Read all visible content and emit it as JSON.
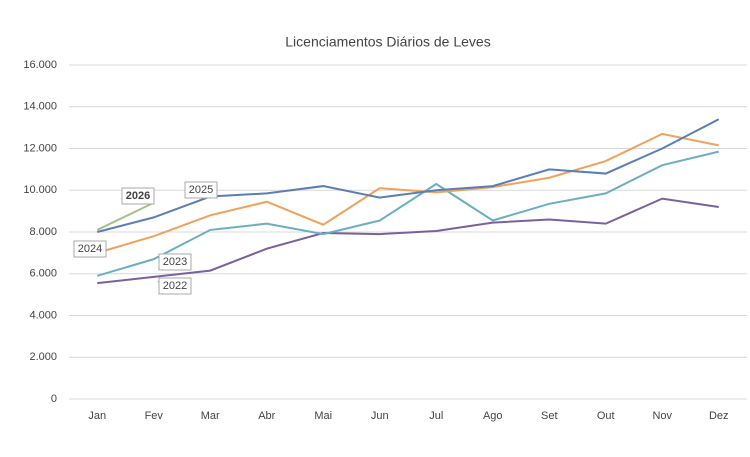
{
  "chart_data": {
    "type": "line",
    "title": "Licenciamentos Diários de Leves",
    "categories": [
      "Jan",
      "Fev",
      "Mar",
      "Abr",
      "Mai",
      "Jun",
      "Jul",
      "Ago",
      "Set",
      "Out",
      "Nov",
      "Dez"
    ],
    "series": [
      {
        "name": "2022",
        "color": "#7b609e",
        "values": [
          5550,
          5850,
          6150,
          7200,
          7950,
          7900,
          8050,
          8450,
          8600,
          8400,
          9600,
          9200
        ]
      },
      {
        "name": "2023",
        "color": "#6aafc1",
        "values": [
          5900,
          6700,
          8100,
          8400,
          7900,
          8550,
          10300,
          8550,
          9350,
          9850,
          11200,
          11850
        ]
      },
      {
        "name": "2024",
        "color": "#eea25c",
        "values": [
          7000,
          7800,
          8800,
          9450,
          8350,
          10100,
          9900,
          10150,
          10600,
          11400,
          12700,
          12150
        ]
      },
      {
        "name": "2025",
        "color": "#5a7fb6",
        "values": [
          8000,
          8700,
          9700,
          9850,
          10200,
          9650,
          10000,
          10200,
          11000,
          10800,
          12000,
          13400
        ]
      },
      {
        "name": "2026",
        "color": "#a8c08a",
        "values": [
          8100,
          9400,
          null,
          null,
          null,
          null,
          null,
          null,
          null,
          null,
          null,
          null
        ]
      }
    ],
    "ylim": [
      0,
      16000
    ],
    "yticks": [
      0,
      {
        "value": 2000,
        "label": "2.000"
      },
      {
        "value": 4000,
        "label": "4.000"
      },
      {
        "value": 6000,
        "label": "6.000"
      },
      {
        "value": 8000,
        "label": "8.000"
      },
      {
        "value": 10000,
        "label": "10.000"
      },
      {
        "value": 12000,
        "label": "12.000"
      },
      {
        "value": 14000,
        "label": "14.000"
      },
      {
        "value": 16000,
        "label": "16.000"
      }
    ],
    "grid": true
  }
}
